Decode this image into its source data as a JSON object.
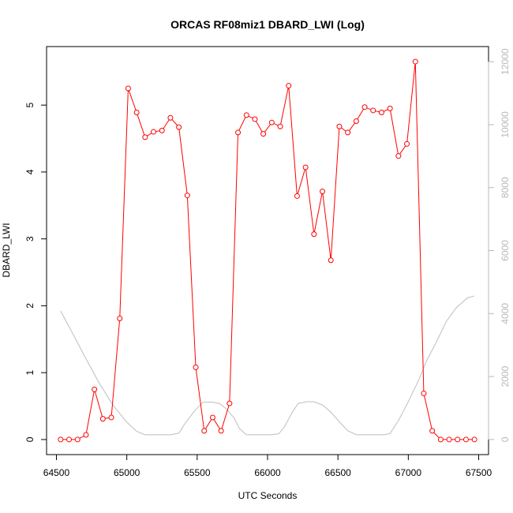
{
  "chart_data": {
    "type": "line",
    "title": "ORCAS RF08miz1 DBARD_LWI (Log)",
    "xlabel": "UTC Seconds",
    "ylabel": "DBARD_LWI",
    "y2label": "",
    "xlim": [
      64500,
      67500
    ],
    "ylim": [
      0,
      5.65
    ],
    "y2lim": [
      0,
      12000
    ],
    "xticks": [
      "64500",
      "65000",
      "65500",
      "66000",
      "66500",
      "67000",
      "67500"
    ],
    "yticks": [
      "0",
      "1",
      "2",
      "3",
      "4",
      "5"
    ],
    "y2ticks": [
      "0",
      "2000",
      "4000",
      "6000",
      "8000",
      "10000",
      "12000"
    ],
    "grid": false,
    "colors": {
      "primary": "#ff0000",
      "secondary": "#bebebe"
    },
    "series": [
      {
        "axis": "left",
        "style": "line-with-circles",
        "x": [
          64530,
          64590,
          64650,
          64710,
          64770,
          64830,
          64890,
          64950,
          65010,
          65070,
          65130,
          65190,
          65250,
          65310,
          65370,
          65430,
          65490,
          65550,
          65610,
          65670,
          65730,
          65790,
          65850,
          65910,
          65970,
          66030,
          66090,
          66150,
          66210,
          66270,
          66330,
          66390,
          66450,
          66510,
          66570,
          66630,
          66690,
          66750,
          66810,
          66870,
          66930,
          66990,
          67050,
          67110,
          67170,
          67230,
          67290,
          67350,
          67410,
          67470
        ],
        "values": [
          0.0,
          0.0,
          0.0,
          0.07,
          0.75,
          0.31,
          0.33,
          1.81,
          5.25,
          4.89,
          4.52,
          4.6,
          4.62,
          4.81,
          4.67,
          3.65,
          1.08,
          0.13,
          0.33,
          0.13,
          0.54,
          4.59,
          4.85,
          4.79,
          4.57,
          4.74,
          4.68,
          5.29,
          3.64,
          4.07,
          3.07,
          3.71,
          2.68,
          4.68,
          4.59,
          4.76,
          4.97,
          4.92,
          4.89,
          4.95,
          4.24,
          4.42,
          5.65,
          0.69,
          0.13,
          0.0,
          0.0,
          0.0,
          0.0,
          0.0
        ]
      },
      {
        "axis": "right",
        "style": "line",
        "x": [
          64530,
          64600,
          64700,
          64800,
          64900,
          65000,
          65070,
          65130,
          65200,
          65260,
          65310,
          65370,
          65420,
          65480,
          65540,
          65600,
          65660,
          65700,
          65760,
          65800,
          65850,
          65900,
          65960,
          66020,
          66080,
          66120,
          66180,
          66220,
          66280,
          66330,
          66390,
          66450,
          66510,
          66570,
          66630,
          66700,
          66780,
          66830,
          66870,
          66930,
          67000,
          67070,
          67130,
          67200,
          67270,
          67340,
          67420,
          67470
        ],
        "values": [
          4080,
          3500,
          2650,
          1820,
          1100,
          550,
          260,
          150,
          150,
          150,
          150,
          200,
          550,
          900,
          1180,
          1190,
          1140,
          1000,
          700,
          350,
          150,
          150,
          150,
          150,
          180,
          400,
          900,
          1150,
          1200,
          1200,
          1100,
          870,
          560,
          280,
          150,
          150,
          150,
          150,
          190,
          600,
          1200,
          1850,
          2500,
          3100,
          3750,
          4180,
          4500,
          4560
        ]
      }
    ]
  }
}
